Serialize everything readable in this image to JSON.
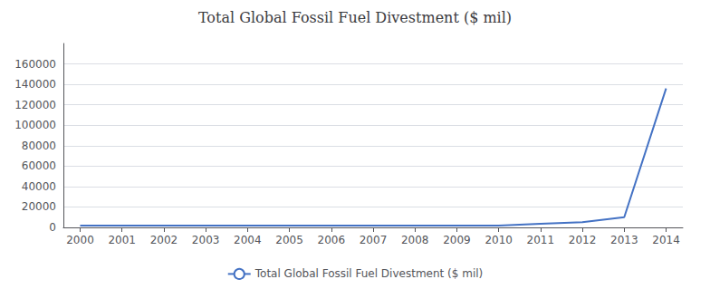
{
  "chart_data": {
    "type": "line",
    "title": "Total Global Fossil Fuel Divestment ($ mil)",
    "x": [
      2000,
      2001,
      2002,
      2003,
      2004,
      2005,
      2006,
      2007,
      2008,
      2009,
      2010,
      2011,
      2012,
      2013,
      2014
    ],
    "series": [
      {
        "name": "Total Global Fossil Fuel Divestment ($ mil)",
        "color": "#4472c4",
        "values": [
          1800,
          1800,
          1800,
          1800,
          1800,
          1800,
          1800,
          1800,
          1800,
          1800,
          1800,
          3500,
          5000,
          10000,
          136000
        ]
      }
    ],
    "xlim": [
      1999.6,
      2014.4
    ],
    "xticks": [
      2000,
      2001,
      2002,
      2003,
      2004,
      2005,
      2006,
      2007,
      2008,
      2009,
      2010,
      2011,
      2012,
      2013,
      2014
    ],
    "ylim": [
      0,
      180000
    ],
    "yticks": [
      0,
      20000,
      40000,
      60000,
      80000,
      100000,
      120000,
      140000,
      160000
    ],
    "grid": true,
    "legend": "bottom"
  }
}
